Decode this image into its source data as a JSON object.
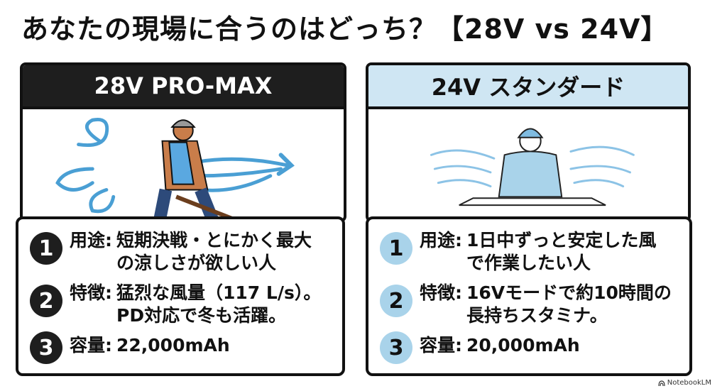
{
  "title": "あなたの現場に合うのはどっち？【28V vs 24V】",
  "cards": [
    {
      "header": "28V PRO-MAX",
      "illustration": "worker-with-powerful-wind-icon",
      "items": [
        {
          "num": "1",
          "label": "用途:",
          "lines": [
            "短期決戦・とにかく最大",
            "の涼しさが欲しい人"
          ]
        },
        {
          "num": "2",
          "label": "特徴:",
          "lines": [
            "猛烈な風量（117 L/s）。",
            "PD対応で冬も活躍。"
          ]
        },
        {
          "num": "3",
          "label": "容量:",
          "lines": [
            "22,000mAh"
          ]
        }
      ]
    },
    {
      "header": "24V スタンダード",
      "illustration": "worker-at-desk-gentle-wind-icon",
      "items": [
        {
          "num": "1",
          "label": "用途:",
          "lines": [
            "1日中ずっと安定した風",
            "で作業したい人"
          ]
        },
        {
          "num": "2",
          "label": "特徴:",
          "lines": [
            "16Vモードで約10時間の",
            "長持ちスタミナ。"
          ]
        },
        {
          "num": "3",
          "label": "容量:",
          "lines": [
            "20,000mAh"
          ]
        }
      ]
    }
  ],
  "brand": "NotebookLM",
  "colors": {
    "dark": "#1e1e1e",
    "light_blue": "#cfe6f3",
    "wind_blue": "#4a9fd4"
  }
}
